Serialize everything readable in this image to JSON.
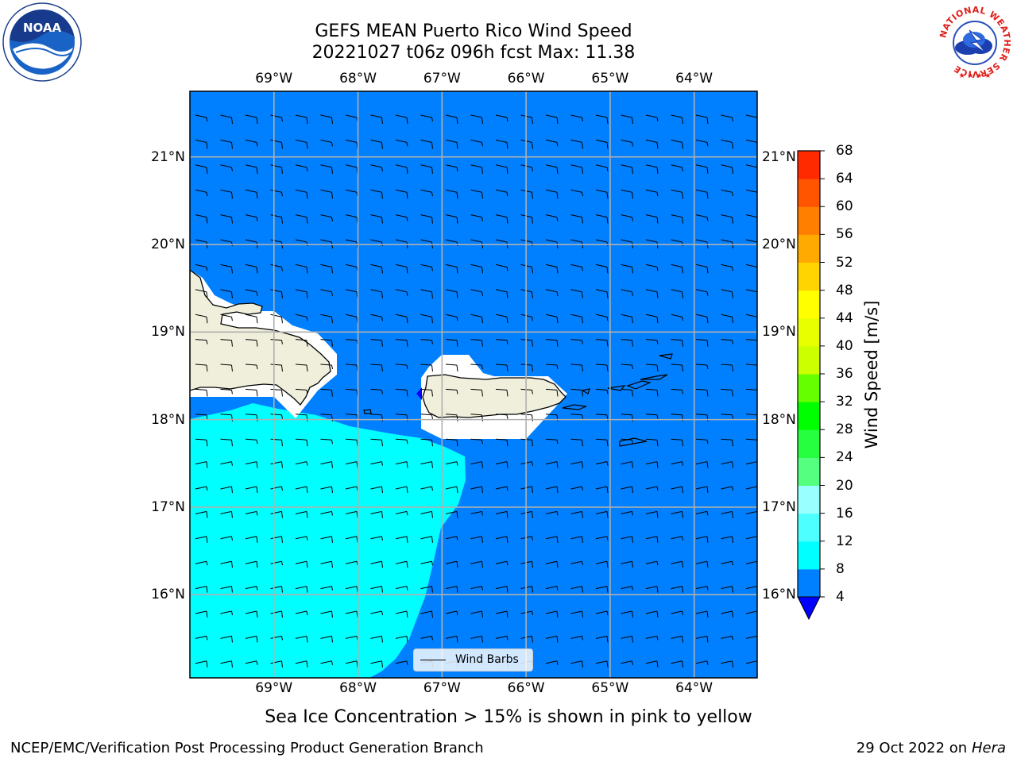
{
  "header": {
    "title_line1": "GEFS MEAN Puerto Rico Wind Speed",
    "title_line2": "20221027 t06z 096h fcst   Max: 11.38"
  },
  "logos": {
    "left": "noaa-logo",
    "right": "national-weather-service-logo",
    "right_text": "NATIONAL WEATHER SERVICE"
  },
  "map": {
    "lon_labels": [
      "69°W",
      "68°W",
      "67°W",
      "66°W",
      "65°W",
      "64°W"
    ],
    "lat_labels": [
      "21°N",
      "20°N",
      "19°N",
      "18°N",
      "17°N",
      "16°N"
    ],
    "lon_values": [
      -69,
      -68,
      -67,
      -66,
      -65,
      -64
    ],
    "lat_values": [
      21,
      20,
      19,
      18,
      17,
      16
    ],
    "lon_range": [
      -70,
      -63.25
    ],
    "lat_range": [
      15.05,
      21.75
    ],
    "gridlines": true,
    "colors": {
      "ocean_4_8": "#0080ff",
      "wind_8_12": "#00ffff",
      "land": "#efefdc",
      "below_4": "#0000ff"
    },
    "regions": [
      "Hispaniola (Dominican Republic)",
      "Puerto Rico",
      "Virgin Islands"
    ]
  },
  "legend": {
    "label": "Wind Barbs"
  },
  "colorbar": {
    "label": "Wind Speed [m/s]",
    "ticks": [
      "68",
      "64",
      "60",
      "56",
      "52",
      "48",
      "44",
      "40",
      "36",
      "32",
      "28",
      "24",
      "20",
      "16",
      "12",
      "8",
      "4"
    ],
    "levels": [
      4,
      8,
      12,
      16,
      20,
      24,
      28,
      32,
      36,
      40,
      44,
      48,
      52,
      56,
      60,
      64,
      68
    ],
    "colors": [
      "#0080ff",
      "#00ffff",
      "#4dffff",
      "#99ffff",
      "#55ff80",
      "#26ff40",
      "#00ff00",
      "#66ff00",
      "#ccff00",
      "#e8ff00",
      "#ffff00",
      "#ffd400",
      "#ffaa00",
      "#ff8000",
      "#ff5500",
      "#ff2a00",
      "#ff0000"
    ],
    "under_color": "#0000ff"
  },
  "caption": "Sea Ice Concentration > 15% is shown in pink to yellow",
  "footer": {
    "left": "NCEP/EMC/Verification Post Processing Product Generation Branch",
    "right_prefix": "29 Oct 2022 on ",
    "right_italic": "Hera"
  },
  "chart_data": {
    "type": "heatmap",
    "title": "GEFS MEAN Puerto Rico Wind Speed",
    "subtitle": "20221027 t06z 096h fcst   Max: 11.38",
    "units": "m/s",
    "max": 11.38,
    "colorbar_range": [
      4,
      68
    ],
    "field_regions": [
      {
        "range": "4–8",
        "area": "most of domain (north, east, south-east)"
      },
      {
        "range": "8–12",
        "area": "south-west, south of Hispaniola"
      },
      {
        "range": "<4",
        "area": "small patch off western Puerto Rico"
      }
    ],
    "wind_barbs": "easterly trade winds, short shafts with single half/full barbs"
  }
}
